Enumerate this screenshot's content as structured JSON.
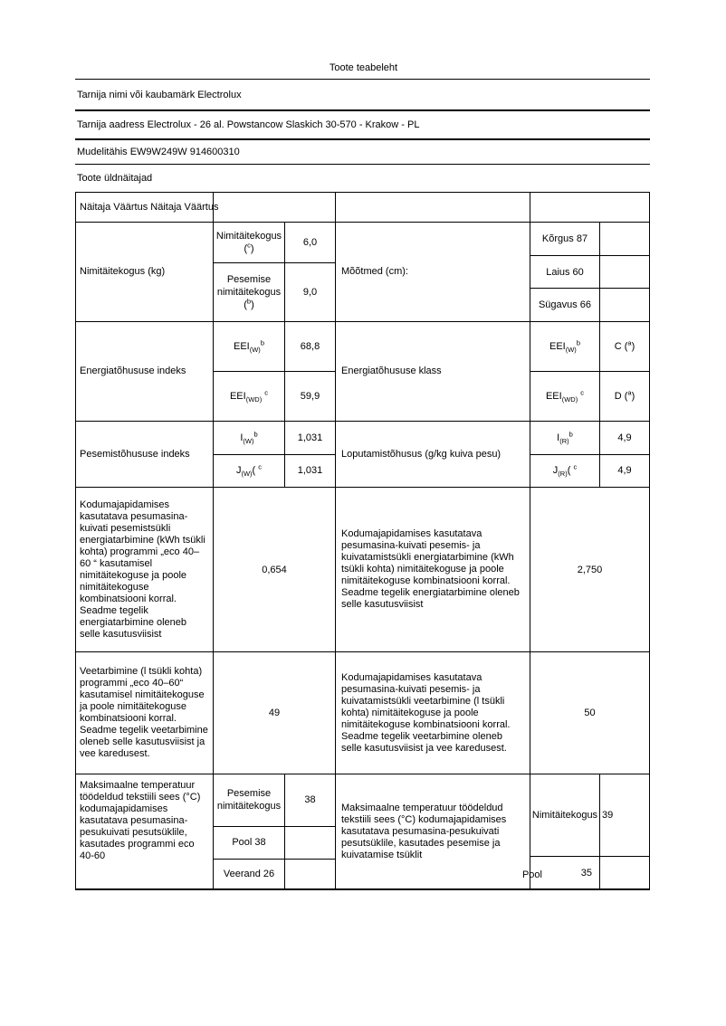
{
  "title": "Toote teabeleht",
  "supplier_name_row": "Tarnija nimi või kaubamärk Electrolux",
  "supplier_address_row": "Tarnija aadress Electrolux - 26 al. Powstancow Slaskich 30-570 - Krakow - PL",
  "model_row": "Mudelitähis EW9W249W 914600310",
  "section_title": "Toote üldnäitajad",
  "colors": {
    "text": "#000000",
    "background": "#ffffff",
    "border": "#000000"
  },
  "formulas": {
    "note_c": {
      "b1": "(",
      "sup": "c",
      "b3": ")"
    },
    "note_b": {
      "b1": "(",
      "sup": "b",
      "b3": ")"
    },
    "eei_w": {
      "b1": "EEI",
      "sub": "(W)",
      "sup": "b"
    },
    "eei_wd": {
      "b1": "EEI",
      "sub": "(WD)",
      "b2": " ",
      "sup": "c"
    },
    "i_w": {
      "b1": "I",
      "sub": "(W)",
      "sup": "b"
    },
    "j_w": {
      "b1": "J",
      "sub": "(W)",
      "b2": "( ",
      "sup": "c"
    },
    "i_r": {
      "b1": "I",
      "sub": "(R)",
      "sup": "b"
    },
    "j_r": {
      "b1": "J",
      "sub": "(R)",
      "b2": "( ",
      "sup": "c"
    },
    "class_c": {
      "b1": "C (",
      "sup": "a",
      "b3": ")"
    },
    "class_d": {
      "b1": "D (",
      "sup": "a",
      "b3": ")"
    }
  },
  "table": {
    "header_row": "Näitaja Väärtus Näitaja Väärtus",
    "capacity": {
      "label": "Nimitäitekogus (kg)",
      "sub1_name": "Nimitäitekogus",
      "sub1_value": "6,0",
      "sub2_name": "Pesemise nimitäitekogus",
      "sub2_value": "9,0",
      "right_label": "Mõõtmed (cm):",
      "dim1": "Kõrgus 87",
      "dim2": "Laius 60",
      "dim3": "Sügavus 66"
    },
    "energy_index": {
      "label": "Energiatõhususe indeks",
      "val1": "68,8",
      "val2": "59,9",
      "right_label": "Energiatõhususe klass"
    },
    "wash_index": {
      "label": "Pesemistõhususe indeks",
      "val1": "1,031",
      "val2": "1,031",
      "right_label": "Loputamistõhusus (g/kg kuiva pesu)",
      "rval1": "4,9",
      "rval2": "4,9"
    },
    "energy_consumption": {
      "left_text": "Kodumajapidamises kasutatava pesumasina-kuivati pesemistsükli energiatarbimine (kWh tsükli kohta) programmi „eco 40–60 “ kasutamisel nimitäitekoguse ja poole nimitäitekoguse kombinatsiooni korral. Seadme tegelik energiatarbimine oleneb selle kasutusviisist",
      "left_value": "0,654",
      "right_text": "Kodumajapidamises kasutatava pesumasina-kuivati pesemis- ja kuivatamistsükli energiatarbimine (kWh tsükli kohta) nimitäitekoguse ja poole nimitäitekoguse kombinatsiooni korral. Seadme tegelik energiatarbimine oleneb selle kasutusviisist",
      "right_value": "2,750"
    },
    "water_consumption": {
      "left_text": "Veetarbimine (l tsükli kohta) programmi „eco 40–60“ kasutamisel nimitäitekoguse ja poole nimitäitekoguse kombinatsiooni korral. Seadme tegelik veetarbimine oleneb selle kasutusviisist ja vee karedusest.",
      "left_value": "49",
      "right_text": "Kodumajapidamises kasutatava pesumasina-kuivati pesemis- ja kuivatamistsükli veetarbimine (l tsükli kohta) nimitäitekoguse ja poole nimitäitekoguse kombinatsiooni korral. Seadme tegelik veetarbimine oleneb selle kasutusviisist ja vee karedusest.",
      "right_value": "50"
    },
    "max_temp": {
      "left_text": "Maksimaalne temperatuur töödeldud tekstiili sees (°C) kodumajapidamises kasutatava pesumasina-pesukuivati pesutsüklile, kasutades programmi eco 40-60",
      "sub1_name": "Pesemise nimitäitekogus",
      "sub1_value": "38",
      "sub2_name": "Pool 38",
      "sub3_name": "Veerand 26",
      "right_text": "Maksimaalne temperatuur töödeldud tekstiili sees (°C) kodumajapidamises kasutatava pesumasina-pesukuivati pesutsüklile, kasutades pesemise ja kuivatamise tsüklit",
      "rsub1_name": "Nimitäitekogus",
      "rsub1_value": "39",
      "pool_label": "Pool",
      "pool_value": "35"
    }
  }
}
